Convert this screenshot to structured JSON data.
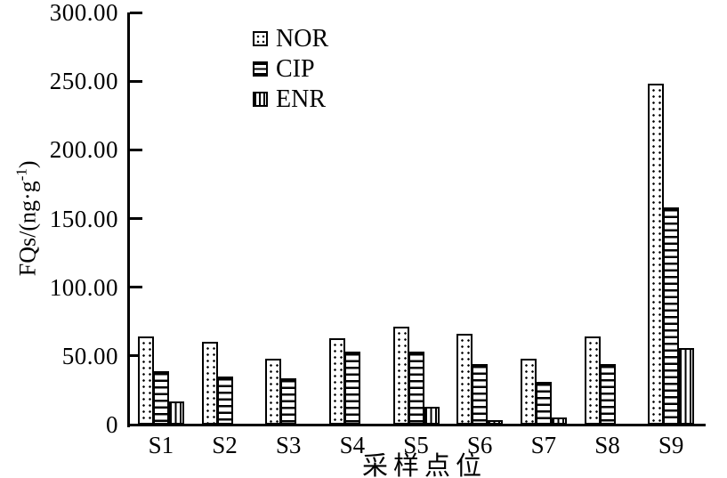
{
  "colors": {
    "ink": "#000000",
    "background": "#ffffff"
  },
  "chart_data": {
    "type": "bar",
    "title": "",
    "xlabel": "采样点位",
    "ylabel": "FQs/(ng·g⁻¹)",
    "ylabel_parts": {
      "main": "FQs/(ng·g",
      "sup": "-1",
      "close": ")"
    },
    "ylim": [
      0,
      300
    ],
    "grid": false,
    "legend_position": "inside-top-center",
    "categories": [
      "S1",
      "S2",
      "S3",
      "S4",
      "S5",
      "S6",
      "S7",
      "S8",
      "S9"
    ],
    "yticks": [
      {
        "label": "300.00",
        "value": 300
      },
      {
        "label": "250.00",
        "value": 250
      },
      {
        "label": "200.00",
        "value": 200
      },
      {
        "label": "150.00",
        "value": 150
      },
      {
        "label": "100.00",
        "value": 100
      },
      {
        "label": "50.00",
        "value": 50
      },
      {
        "label": "0",
        "value": 0
      }
    ],
    "series": [
      {
        "name": "NOR",
        "pattern": "dots",
        "values": [
          64,
          60,
          48,
          63,
          71,
          66,
          48,
          64,
          248
        ]
      },
      {
        "name": "CIP",
        "pattern": "hlines",
        "values": [
          39,
          35,
          34,
          53,
          53,
          44,
          31,
          44,
          158
        ]
      },
      {
        "name": "ENR",
        "pattern": "vlines",
        "values": [
          17,
          0,
          0,
          0,
          13,
          3,
          5,
          0,
          56
        ]
      }
    ]
  }
}
